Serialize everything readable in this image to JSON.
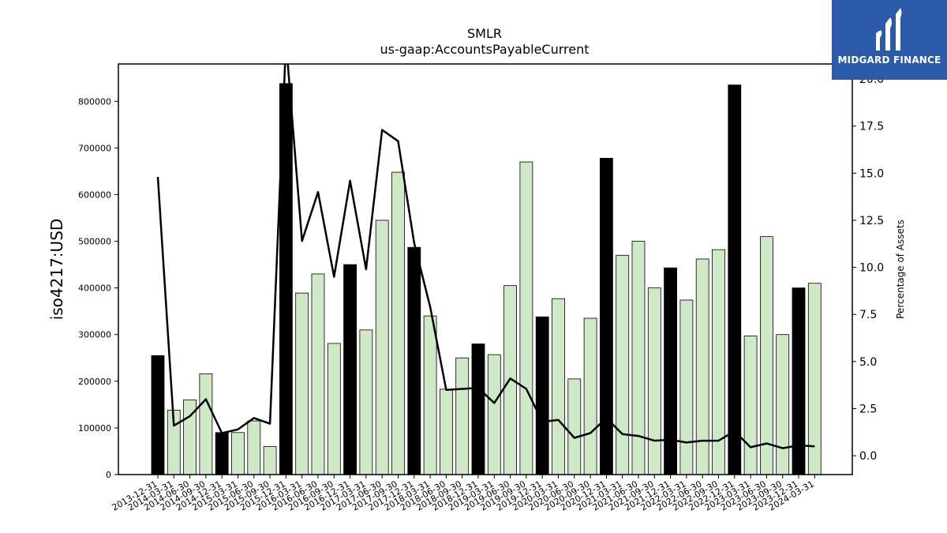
{
  "chart_data": {
    "type": "bar",
    "title": "SMLR",
    "subtitle": "us-gaap:AccountsPayableCurrent",
    "ylabel": "iso4217:USD",
    "ylabel_right": "Percentage of Assets",
    "ylim": [
      0,
      880000
    ],
    "ylim_right": [
      -1.0,
      20.8
    ],
    "yticks": [
      0,
      100000,
      200000,
      300000,
      400000,
      500000,
      600000,
      700000,
      800000
    ],
    "yticks_right": [
      "0.0",
      "2.5",
      "5.0",
      "7.5",
      "10.0",
      "12.5",
      "15.0",
      "17.5",
      "20.0"
    ],
    "categories": [
      "2013-12-31",
      "2014-03-31",
      "2014-06-30",
      "2014-09-30",
      "2014-12-31",
      "2015-03-31",
      "2015-06-30",
      "2015-09-30",
      "2015-12-31",
      "2016-03-31",
      "2016-06-30",
      "2016-09-30",
      "2016-12-31",
      "2017-03-31",
      "2017-06-30",
      "2017-09-30",
      "2017-12-31",
      "2018-03-31",
      "2018-06-30",
      "2018-09-30",
      "2018-12-31",
      "2019-03-31",
      "2019-06-30",
      "2019-09-30",
      "2019-12-31",
      "2020-03-31",
      "2020-06-30",
      "2020-09-30",
      "2020-12-31",
      "2021-03-31",
      "2021-06-30",
      "2021-09-30",
      "2021-12-31",
      "2022-03-31",
      "2022-06-30",
      "2022-09-30",
      "2022-12-31",
      "2023-03-31",
      "2023-06-30",
      "2023-09-30",
      "2023-12-31",
      "2024-03-31"
    ],
    "values": [
      255000,
      138000,
      160000,
      216000,
      90000,
      90000,
      115000,
      60000,
      838000,
      389000,
      430000,
      281000,
      450000,
      310000,
      545000,
      648000,
      487000,
      340000,
      183000,
      250000,
      280000,
      257000,
      405000,
      670000,
      338000,
      377000,
      205000,
      335000,
      678000,
      470000,
      500000,
      400000,
      443000,
      374000,
      462000,
      482000,
      835000,
      297000,
      510000,
      300000,
      400000,
      410000
    ],
    "year_end_flags": [
      true,
      false,
      false,
      false,
      true,
      false,
      false,
      false,
      true,
      false,
      false,
      false,
      true,
      false,
      false,
      false,
      true,
      false,
      false,
      false,
      true,
      false,
      false,
      false,
      true,
      false,
      false,
      false,
      true,
      false,
      false,
      false,
      true,
      false,
      false,
      false,
      true,
      false,
      false,
      false,
      true,
      false
    ],
    "line_values": [
      14.8,
      1.6,
      2.1,
      3.0,
      1.2,
      1.4,
      2.0,
      1.7,
      22.0,
      11.4,
      14.0,
      9.5,
      14.6,
      9.9,
      17.3,
      16.7,
      11.3,
      7.9,
      3.5,
      3.55,
      3.6,
      2.8,
      4.1,
      3.55,
      1.8,
      1.9,
      0.95,
      1.2,
      2.0,
      1.15,
      1.05,
      0.8,
      0.85,
      0.7,
      0.8,
      0.8,
      1.3,
      0.45,
      0.65,
      0.4,
      0.55,
      0.5
    ],
    "colors": {
      "year_end_bar": "#000000",
      "quarter_bar": "#cfe9c6",
      "bar_edge": "#000000",
      "line": "#000000"
    }
  },
  "logo": {
    "text": "MIDGARD FINANCE",
    "background": "#2b5aa8"
  }
}
